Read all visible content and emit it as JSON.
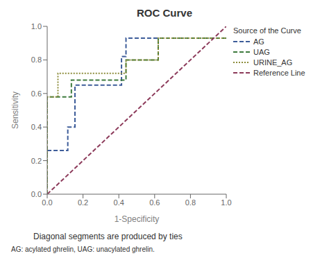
{
  "chart_data": {
    "type": "line",
    "title": "ROC Curve",
    "x_label": "1-Specificity",
    "y_label": "Sensitivity",
    "annotations": [
      "Diagonal segments are produced by ties",
      "AG: acylated ghrelin, UAG: unacylated ghrelin."
    ],
    "legend_title": "Source of the Curve",
    "legend": "right",
    "grid": false,
    "xlim": [
      0.0,
      1.0
    ],
    "ylim": [
      0.0,
      1.0
    ],
    "xticks": [
      {
        "value": 0,
        "label": "0.0"
      },
      0.2,
      0.4,
      0.6,
      0.8,
      {
        "value": 1,
        "label": "1.0"
      }
    ],
    "yticks": [
      {
        "value": 0,
        "label": "0.0"
      },
      0.2,
      0.4,
      0.6,
      0.8,
      {
        "value": 1,
        "label": "1.0"
      }
    ],
    "series": [
      {
        "name": "AG",
        "color": "#3d5c99",
        "line_style": "dashed",
        "x": [
          0.0,
          0.0,
          0.115,
          0.115,
          0.155,
          0.155,
          0.415,
          0.415,
          0.44,
          0.44,
          1.0
        ],
        "values": [
          0.0,
          0.26,
          0.26,
          0.4,
          0.4,
          0.65,
          0.65,
          0.82,
          0.82,
          0.93,
          0.93
        ]
      },
      {
        "name": "UAG",
        "color": "#3d7a3d",
        "line_style": "dashed",
        "x": [
          0.0,
          0.0,
          0.135,
          0.135,
          0.44,
          0.44,
          0.62,
          0.62,
          1.0
        ],
        "values": [
          0.0,
          0.58,
          0.58,
          0.68,
          0.68,
          0.8,
          0.8,
          0.93,
          0.93
        ]
      },
      {
        "name": "URINE_AG",
        "color": "#8c8c3a",
        "line_style": "dotted",
        "x": [
          0.0,
          0.0,
          0.06,
          0.06,
          0.44,
          0.44,
          0.62,
          0.62,
          1.0
        ],
        "values": [
          0.0,
          0.58,
          0.58,
          0.72,
          0.72,
          0.8,
          0.8,
          0.93,
          0.93
        ]
      },
      {
        "name": "Reference Line",
        "color": "#8c3a5a",
        "line_style": "dashed",
        "x": [
          0.0,
          1.0
        ],
        "values": [
          0.0,
          1.0
        ]
      }
    ]
  }
}
